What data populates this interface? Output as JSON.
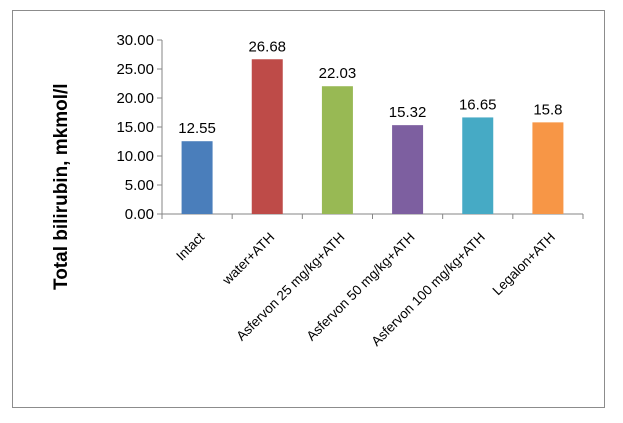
{
  "chart_data": {
    "type": "bar",
    "ylabel": "Total bilirubin,  mkmol/l",
    "xlabel": "",
    "ylim": [
      0,
      30
    ],
    "ytick_values": [
      0,
      5,
      10,
      15,
      20,
      25,
      30
    ],
    "ytick_labels": [
      "0.00",
      "5.00",
      "10.00",
      "15.00",
      "20.00",
      "25.00",
      "30.00"
    ],
    "categories": [
      "Intact",
      "water+ATH",
      "Asfervon 25 mg/kg+ATH",
      "Asfervon 50 mg/kg+ATH",
      "Asfervon 100 mg/kg+ATH",
      "Legalon+ATH"
    ],
    "values": [
      12.55,
      26.68,
      22.03,
      15.32,
      16.65,
      15.8
    ],
    "data_labels": [
      "12.55",
      "26.68",
      "22.03",
      "15.32",
      "16.65",
      "15.8"
    ],
    "colors": [
      "#4a7ebb",
      "#be4b48",
      "#98b954",
      "#7d5fa0",
      "#46aac5",
      "#f79646"
    ],
    "grid": false,
    "legend": "none"
  }
}
